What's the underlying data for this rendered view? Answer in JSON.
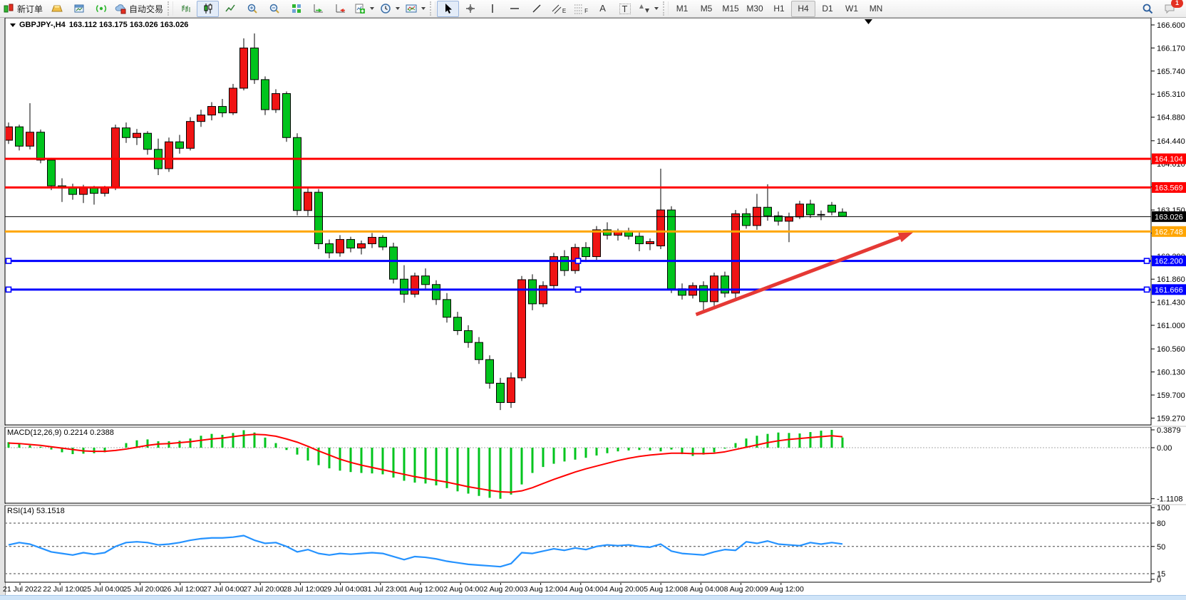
{
  "toolbar": {
    "new_order": "新订单",
    "auto_trading": "自动交易",
    "timeframes": [
      "M1",
      "M5",
      "M15",
      "M30",
      "H1",
      "H4",
      "D1",
      "W1",
      "MN"
    ],
    "active_timeframe": "H4",
    "chat_badge_count": "1",
    "text_tool": "A",
    "label_tool": "T",
    "channel_tool_sub": "E",
    "fibo_tool_sub": "F"
  },
  "chart": {
    "symbol": "GBPJPY-,H4",
    "ohlc": "163.112 163.175 163.026 163.026"
  },
  "price_axis": {
    "ticks": [
      "166.600",
      "166.170",
      "165.740",
      "165.310",
      "164.880",
      "164.440",
      "164.010",
      "163.580",
      "163.150",
      "162.720",
      "162.290",
      "161.860",
      "161.430",
      "161.000",
      "160.560",
      "160.130",
      "159.700",
      "159.270"
    ],
    "badges": [
      {
        "label": "164.104",
        "price": 164.104,
        "bg": "#ff0000",
        "fg": "#ffffff"
      },
      {
        "label": "163.569",
        "price": 163.569,
        "bg": "#ff0000",
        "fg": "#ffffff"
      },
      {
        "label": "163.026",
        "price": 163.026,
        "bg": "#000000",
        "fg": "#ffffff"
      },
      {
        "label": "162.748",
        "price": 162.748,
        "bg": "#ffa500",
        "fg": "#ffffff"
      },
      {
        "label": "162.200",
        "price": 162.2,
        "bg": "#0000ff",
        "fg": "#ffffff"
      },
      {
        "label": "161.666",
        "price": 161.666,
        "bg": "#0000ff",
        "fg": "#ffffff"
      }
    ]
  },
  "time_axis": {
    "labels": [
      "21 Jul 2022",
      "22 Jul 12:00",
      "25 Jul 04:00",
      "25 Jul 20:00",
      "26 Jul 12:00",
      "27 Jul 04:00",
      "27 Jul 20:00",
      "28 Jul 12:00",
      "29 Jul 04:00",
      "31 Jul 23:00",
      "1 Aug 12:00",
      "2 Aug 04:00",
      "2 Aug 20:00",
      "3 Aug 12:00",
      "4 Aug 04:00",
      "4 Aug 20:00",
      "5 Aug 12:00",
      "8 Aug 04:00",
      "8 Aug 20:00",
      "9 Aug 12:00"
    ]
  },
  "chart_data": {
    "type": "candlestick",
    "symbol": "GBPJPY-",
    "timeframe": "H4",
    "last_ohlc": {
      "open": "163.112",
      "high": "163.175",
      "low": "163.026",
      "close": "163.026"
    },
    "y_axis": {
      "min": 159.27,
      "max": 166.6
    },
    "colors": {
      "up": "#f01414",
      "down": "#00c41d",
      "outline": "#000000",
      "hline_red": "#ff0000",
      "hline_orange": "#ffa500",
      "hline_blue": "#0000ff",
      "hline_black": "#000000",
      "arrow": "#e53935",
      "macd_hist": "#00c41d",
      "macd_signal": "#ff0000",
      "rsi_line": "#2492ff"
    },
    "candles": [
      [
        164.45,
        164.78,
        164.38,
        164.7
      ],
      [
        164.7,
        164.74,
        164.26,
        164.34
      ],
      [
        164.34,
        165.14,
        164.28,
        164.6
      ],
      [
        164.6,
        164.65,
        164.02,
        164.08
      ],
      [
        164.08,
        164.12,
        163.52,
        163.6
      ],
      [
        163.6,
        163.74,
        163.3,
        163.56
      ],
      [
        163.56,
        163.64,
        163.34,
        163.44
      ],
      [
        163.44,
        163.62,
        163.28,
        163.56
      ],
      [
        163.56,
        163.6,
        163.25,
        163.46
      ],
      [
        163.46,
        163.6,
        163.4,
        163.56
      ],
      [
        163.56,
        164.74,
        163.52,
        164.68
      ],
      [
        164.68,
        164.78,
        164.4,
        164.5
      ],
      [
        164.5,
        164.66,
        164.36,
        164.58
      ],
      [
        164.58,
        164.62,
        164.18,
        164.28
      ],
      [
        164.28,
        164.48,
        163.8,
        163.92
      ],
      [
        163.92,
        164.5,
        163.86,
        164.42
      ],
      [
        164.42,
        164.55,
        164.2,
        164.3
      ],
      [
        164.3,
        164.88,
        164.26,
        164.8
      ],
      [
        164.8,
        165.02,
        164.7,
        164.92
      ],
      [
        164.92,
        165.16,
        164.82,
        165.08
      ],
      [
        165.08,
        165.22,
        164.88,
        164.96
      ],
      [
        164.96,
        165.5,
        164.92,
        165.42
      ],
      [
        165.42,
        166.35,
        165.38,
        166.17
      ],
      [
        166.17,
        166.44,
        165.5,
        165.58
      ],
      [
        165.58,
        165.64,
        164.92,
        165.02
      ],
      [
        165.02,
        165.4,
        164.96,
        165.32
      ],
      [
        165.32,
        165.36,
        164.42,
        164.5
      ],
      [
        164.5,
        164.58,
        163.05,
        163.14
      ],
      [
        163.14,
        163.58,
        163.04,
        163.48
      ],
      [
        163.48,
        163.54,
        162.42,
        162.52
      ],
      [
        162.52,
        162.6,
        162.25,
        162.35
      ],
      [
        162.35,
        162.68,
        162.28,
        162.6
      ],
      [
        162.6,
        162.65,
        162.36,
        162.44
      ],
      [
        162.44,
        162.58,
        162.32,
        162.52
      ],
      [
        162.52,
        162.72,
        162.44,
        162.64
      ],
      [
        162.64,
        162.68,
        162.4,
        162.46
      ],
      [
        162.46,
        162.54,
        161.78,
        161.86
      ],
      [
        161.86,
        162.12,
        161.42,
        161.58
      ],
      [
        161.58,
        161.98,
        161.52,
        161.92
      ],
      [
        161.92,
        162.06,
        161.68,
        161.76
      ],
      [
        161.76,
        161.84,
        161.38,
        161.48
      ],
      [
        161.48,
        161.6,
        161.05,
        161.15
      ],
      [
        161.15,
        161.25,
        160.82,
        160.9
      ],
      [
        160.9,
        161.0,
        160.58,
        160.68
      ],
      [
        160.68,
        160.78,
        160.28,
        160.36
      ],
      [
        160.36,
        160.44,
        159.82,
        159.92
      ],
      [
        159.92,
        160.02,
        159.42,
        159.56
      ],
      [
        159.56,
        160.12,
        159.46,
        160.02
      ],
      [
        160.02,
        161.92,
        159.96,
        161.85
      ],
      [
        161.85,
        161.95,
        161.28,
        161.4
      ],
      [
        161.4,
        161.82,
        161.34,
        161.74
      ],
      [
        161.74,
        162.35,
        161.66,
        162.28
      ],
      [
        162.28,
        162.4,
        161.92,
        162.02
      ],
      [
        162.02,
        162.52,
        161.96,
        162.45
      ],
      [
        162.45,
        162.55,
        162.18,
        162.28
      ],
      [
        162.28,
        162.85,
        162.22,
        162.78
      ],
      [
        162.78,
        162.92,
        162.6,
        162.68
      ],
      [
        162.68,
        162.8,
        162.58,
        162.76
      ],
      [
        162.76,
        162.82,
        162.6,
        162.66
      ],
      [
        162.66,
        162.74,
        162.38,
        162.52
      ],
      [
        162.52,
        162.62,
        162.4,
        162.56
      ],
      [
        162.48,
        163.92,
        162.42,
        163.15
      ],
      [
        163.15,
        163.22,
        161.6,
        161.68
      ],
      [
        161.68,
        161.78,
        161.48,
        161.56
      ],
      [
        161.56,
        161.8,
        161.5,
        161.74
      ],
      [
        161.74,
        161.82,
        161.28,
        161.44
      ],
      [
        161.44,
        161.98,
        161.36,
        161.92
      ],
      [
        161.92,
        162.0,
        161.52,
        161.6
      ],
      [
        161.6,
        163.15,
        161.46,
        163.08
      ],
      [
        163.08,
        163.18,
        162.8,
        162.86
      ],
      [
        162.86,
        163.45,
        162.78,
        163.2
      ],
      [
        163.2,
        163.63,
        162.95,
        163.04
      ],
      [
        163.04,
        163.12,
        162.86,
        162.94
      ],
      [
        162.94,
        163.1,
        162.55,
        163.02
      ],
      [
        163.02,
        163.32,
        162.98,
        163.26
      ],
      [
        163.26,
        163.34,
        163.0,
        163.06
      ],
      [
        163.06,
        163.14,
        162.96,
        163.06
      ],
      [
        163.24,
        163.3,
        163.05,
        163.11
      ],
      [
        163.11,
        163.18,
        163.03,
        163.03
      ]
    ],
    "hlines": [
      {
        "price": 164.104,
        "color": "#ff0000",
        "width": 3,
        "handles": false
      },
      {
        "price": 163.569,
        "color": "#ff0000",
        "width": 3,
        "handles": false
      },
      {
        "price": 163.026,
        "color": "#000000",
        "width": 1,
        "handles": false
      },
      {
        "price": 162.748,
        "color": "#ffa500",
        "width": 3,
        "handles": false
      },
      {
        "price": 162.2,
        "color": "#0000ff",
        "width": 3,
        "handles": true
      },
      {
        "price": 161.666,
        "color": "#0000ff",
        "width": 3,
        "handles": true
      }
    ],
    "arrow": {
      "from": {
        "t": 64.3,
        "price": 161.2
      },
      "to": {
        "t": 84.6,
        "price": 162.73
      }
    },
    "macd": {
      "label": "MACD(12,26,9) 0.2214 0.2388",
      "macd_value": 0.2214,
      "signal_value": 0.2388,
      "axis": [
        {
          "label": "0.3879",
          "v": 0.3879
        },
        {
          "label": "0.00",
          "v": 0
        },
        {
          "label": "-1.1108",
          "v": -1.1108
        }
      ],
      "hist": [
        0.12,
        0.08,
        0.05,
        0.02,
        -0.04,
        -0.1,
        -0.14,
        -0.13,
        -0.12,
        -0.1,
        0.0,
        0.1,
        0.16,
        0.18,
        0.14,
        0.14,
        0.15,
        0.2,
        0.26,
        0.3,
        0.28,
        0.32,
        0.38,
        0.33,
        0.22,
        0.1,
        -0.05,
        -0.15,
        -0.28,
        -0.38,
        -0.45,
        -0.5,
        -0.53,
        -0.55,
        -0.56,
        -0.58,
        -0.65,
        -0.72,
        -0.76,
        -0.78,
        -0.82,
        -0.88,
        -0.95,
        -1.0,
        -1.05,
        -1.09,
        -1.1108,
        -1.02,
        -0.8,
        -0.55,
        -0.42,
        -0.35,
        -0.3,
        -0.26,
        -0.22,
        -0.17,
        -0.12,
        -0.08,
        -0.06,
        -0.05,
        -0.06,
        -0.08,
        -0.04,
        -0.14,
        -0.18,
        -0.15,
        -0.1,
        -0.02,
        0.1,
        0.2,
        0.26,
        0.3,
        0.33,
        0.32,
        0.31,
        0.34,
        0.37,
        0.3879,
        0.2214
      ],
      "signal": [
        0.1,
        0.09,
        0.07,
        0.05,
        0.02,
        -0.01,
        -0.04,
        -0.07,
        -0.08,
        -0.08,
        -0.06,
        -0.03,
        0.01,
        0.05,
        0.08,
        0.09,
        0.11,
        0.13,
        0.16,
        0.19,
        0.21,
        0.24,
        0.27,
        0.29,
        0.28,
        0.25,
        0.19,
        0.12,
        0.03,
        -0.07,
        -0.16,
        -0.25,
        -0.32,
        -0.38,
        -0.43,
        -0.48,
        -0.53,
        -0.58,
        -0.63,
        -0.67,
        -0.71,
        -0.75,
        -0.8,
        -0.85,
        -0.89,
        -0.93,
        -0.96,
        -0.97,
        -0.94,
        -0.87,
        -0.78,
        -0.69,
        -0.61,
        -0.53,
        -0.46,
        -0.4,
        -0.34,
        -0.28,
        -0.23,
        -0.19,
        -0.16,
        -0.14,
        -0.12,
        -0.12,
        -0.13,
        -0.13,
        -0.12,
        -0.09,
        -0.04,
        0.01,
        0.06,
        0.11,
        0.15,
        0.18,
        0.2,
        0.22,
        0.24,
        0.26,
        0.2388
      ]
    },
    "rsi": {
      "label": "RSI(14) 53.1518",
      "value": 53.1518,
      "axis": [
        {
          "label": "100",
          "v": 100
        },
        {
          "label": "80",
          "v": 80
        },
        {
          "label": "50",
          "v": 50
        },
        {
          "label": "15",
          "v": 15
        },
        {
          "label": "0",
          "v": 0
        }
      ],
      "levels": [
        80,
        50,
        15
      ],
      "values": [
        52,
        55,
        53,
        48,
        43,
        41,
        39,
        42,
        40,
        42,
        50,
        55,
        56,
        55,
        52,
        53,
        55,
        58,
        60,
        61,
        61,
        62,
        64,
        58,
        54,
        55,
        50,
        43,
        46,
        41,
        39,
        41,
        40,
        41,
        42,
        41,
        37,
        33,
        37,
        36,
        34,
        31,
        29,
        27,
        26,
        25,
        24,
        28,
        42,
        41,
        44,
        47,
        45,
        48,
        46,
        50,
        52,
        51,
        52,
        50,
        49,
        53,
        44,
        41,
        40,
        39,
        43,
        46,
        45,
        56,
        54,
        57,
        53,
        52,
        51,
        55,
        53,
        55,
        53.15
      ]
    }
  }
}
